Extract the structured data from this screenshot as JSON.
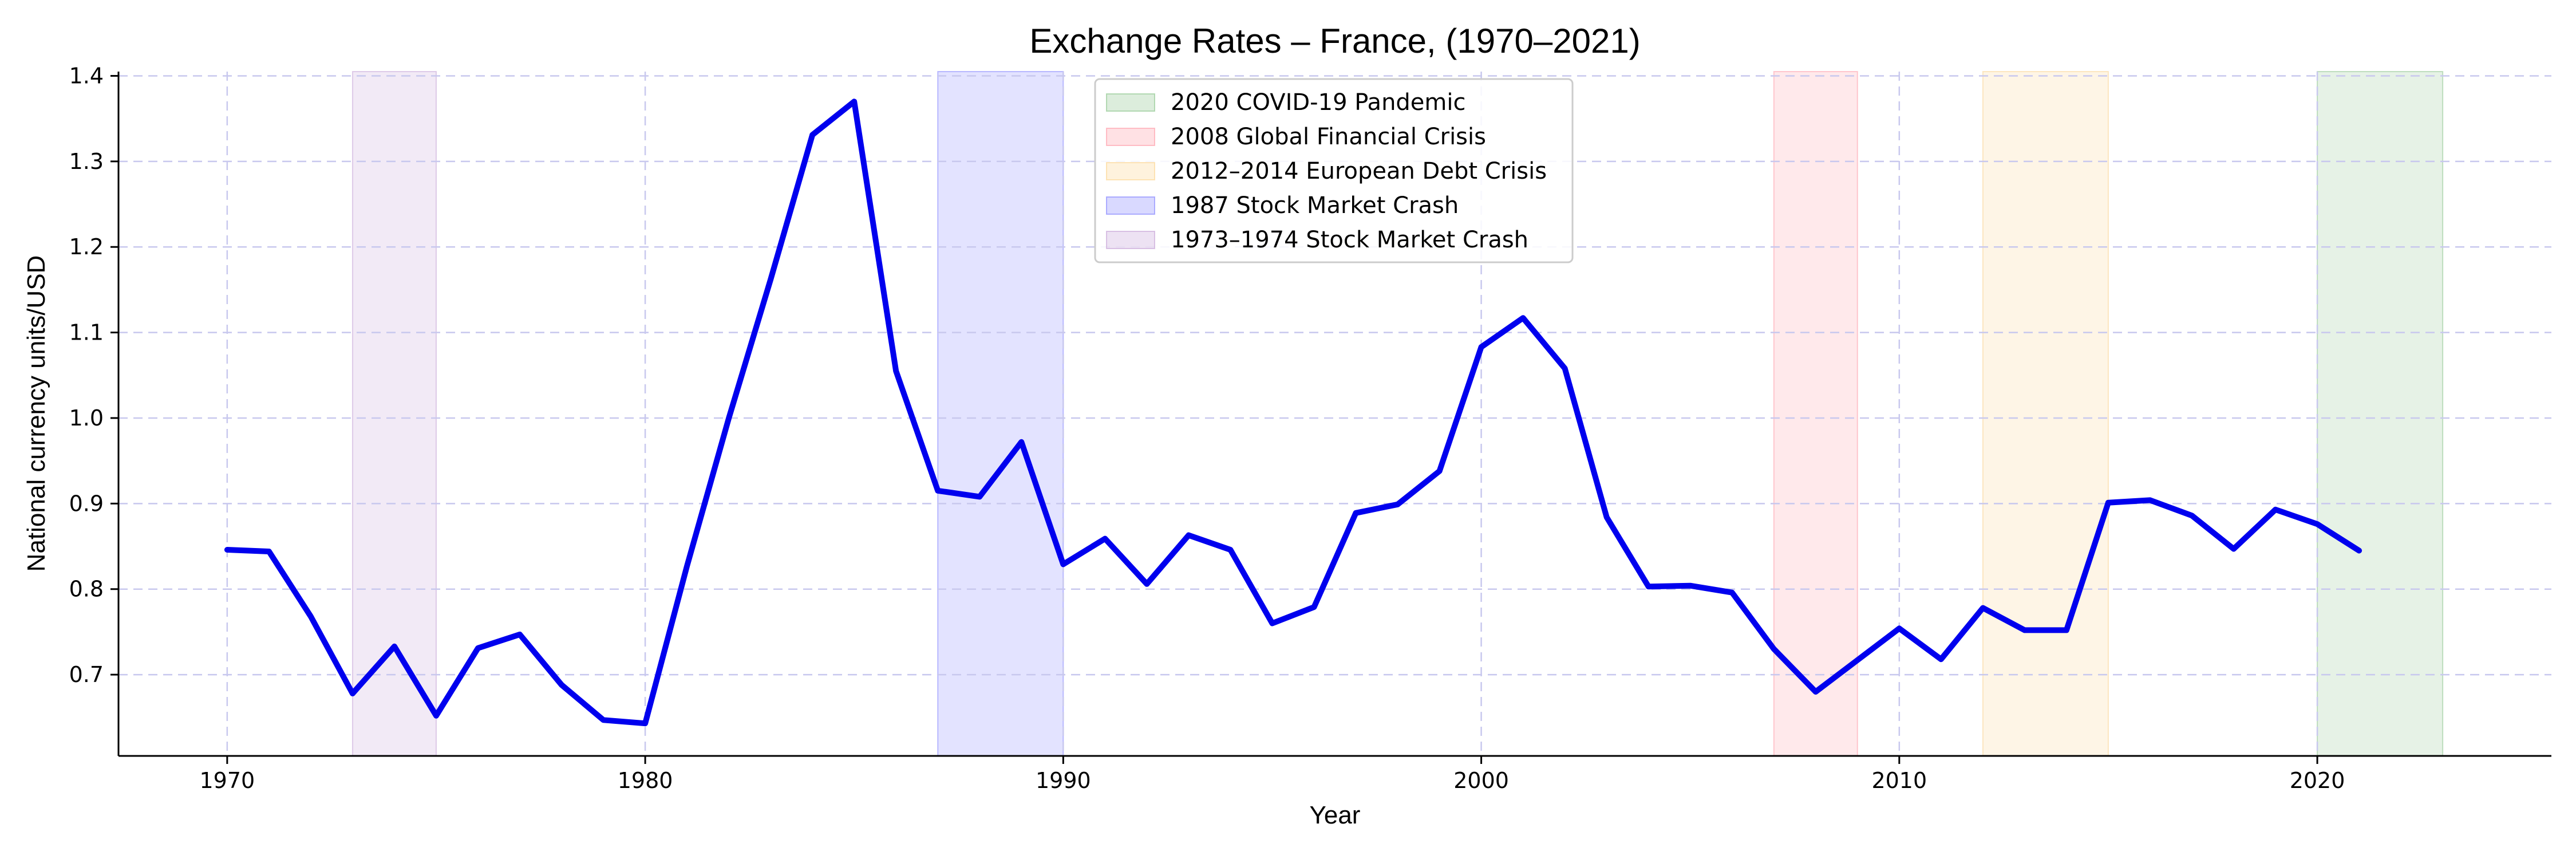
{
  "chart_data": {
    "type": "line",
    "title": "Exchange Rates – France, (1970–2021)",
    "xlabel": "Year",
    "ylabel": "National currency units/USD",
    "xlim": [
      1967.4,
      2025.6
    ],
    "ylim": [
      0.605,
      1.405
    ],
    "x_ticks": [
      1970,
      1980,
      1990,
      2000,
      2010,
      2020
    ],
    "y_ticks": [
      0.7,
      0.8,
      0.9,
      1.0,
      1.1,
      1.2,
      1.3,
      1.4
    ],
    "grid": true,
    "legend_position": "top-center",
    "series": [
      {
        "name": "",
        "color": "#0000ee",
        "x": [
          1970,
          1971,
          1972,
          1973,
          1974,
          1975,
          1976,
          1977,
          1978,
          1979,
          1980,
          1981,
          1982,
          1983,
          1984,
          1985,
          1986,
          1987,
          1988,
          1989,
          1990,
          1991,
          1992,
          1993,
          1994,
          1995,
          1996,
          1997,
          1998,
          1999,
          2000,
          2001,
          2002,
          2003,
          2004,
          2005,
          2006,
          2007,
          2008,
          2009,
          2010,
          2011,
          2012,
          2013,
          2014,
          2015,
          2016,
          2017,
          2018,
          2019,
          2020,
          2021
        ],
        "y": [
          0.846,
          0.844,
          0.768,
          0.678,
          0.733,
          0.652,
          0.731,
          0.747,
          0.688,
          0.647,
          0.643,
          0.827,
          1.0,
          1.162,
          1.331,
          1.37,
          1.055,
          0.915,
          0.908,
          0.972,
          0.829,
          0.859,
          0.806,
          0.863,
          0.846,
          0.76,
          0.779,
          0.889,
          0.899,
          0.938,
          1.083,
          1.117,
          1.058,
          0.884,
          0.803,
          0.804,
          0.796,
          0.73,
          0.68,
          0.717,
          0.754,
          0.718,
          0.778,
          0.752,
          0.752,
          0.901,
          0.904,
          0.886,
          0.847,
          0.893,
          0.876,
          0.845
        ]
      }
    ],
    "shaded_regions": [
      {
        "label": "2020 COVID-19 Pandemic",
        "start": 2020,
        "end": 2023,
        "color": "#8bc48b"
      },
      {
        "label": "2008 Global Financial Crisis",
        "start": 2007,
        "end": 2009,
        "color": "#ff9aa6"
      },
      {
        "label": "2012–2014 European Debt Crisis",
        "start": 2012,
        "end": 2015,
        "color": "#fbd38d"
      },
      {
        "label": "1987 Stock Market Crash",
        "start": 1987,
        "end": 1990,
        "color": "#8080ff"
      },
      {
        "label": "1973–1974 Stock Market Crash",
        "start": 1973,
        "end": 1975,
        "color": "#c4a0d6"
      }
    ]
  }
}
